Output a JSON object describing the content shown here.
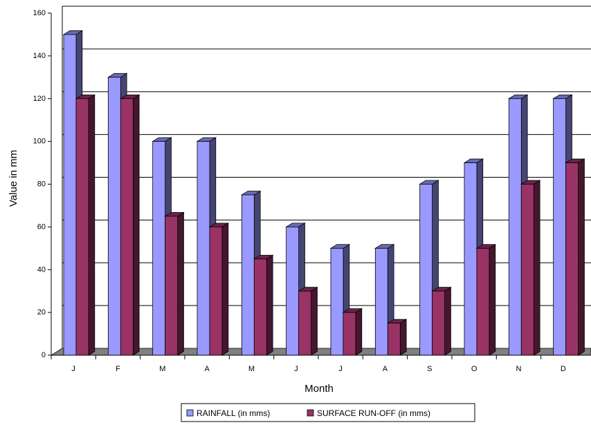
{
  "chart_data": {
    "type": "bar",
    "title": "",
    "xlabel": "Month",
    "ylabel": "Value in mm",
    "ylim": [
      0,
      160
    ],
    "ytick_step": 20,
    "grid": true,
    "three_d": true,
    "legend_position": "bottom",
    "categories": [
      "J",
      "F",
      "M",
      "A",
      "M",
      "J",
      "J",
      "A",
      "S",
      "O",
      "N",
      "D"
    ],
    "series": [
      {
        "name": "RAINFALL (in mms)",
        "color": "#9999ff",
        "values": [
          150,
          130,
          100,
          100,
          75,
          60,
          50,
          50,
          80,
          90,
          120,
          120
        ]
      },
      {
        "name": "SURFACE RUN-OFF (in mms)",
        "color": "#993366",
        "values": [
          120,
          120,
          65,
          60,
          45,
          30,
          20,
          15,
          30,
          50,
          80,
          90
        ]
      }
    ]
  }
}
